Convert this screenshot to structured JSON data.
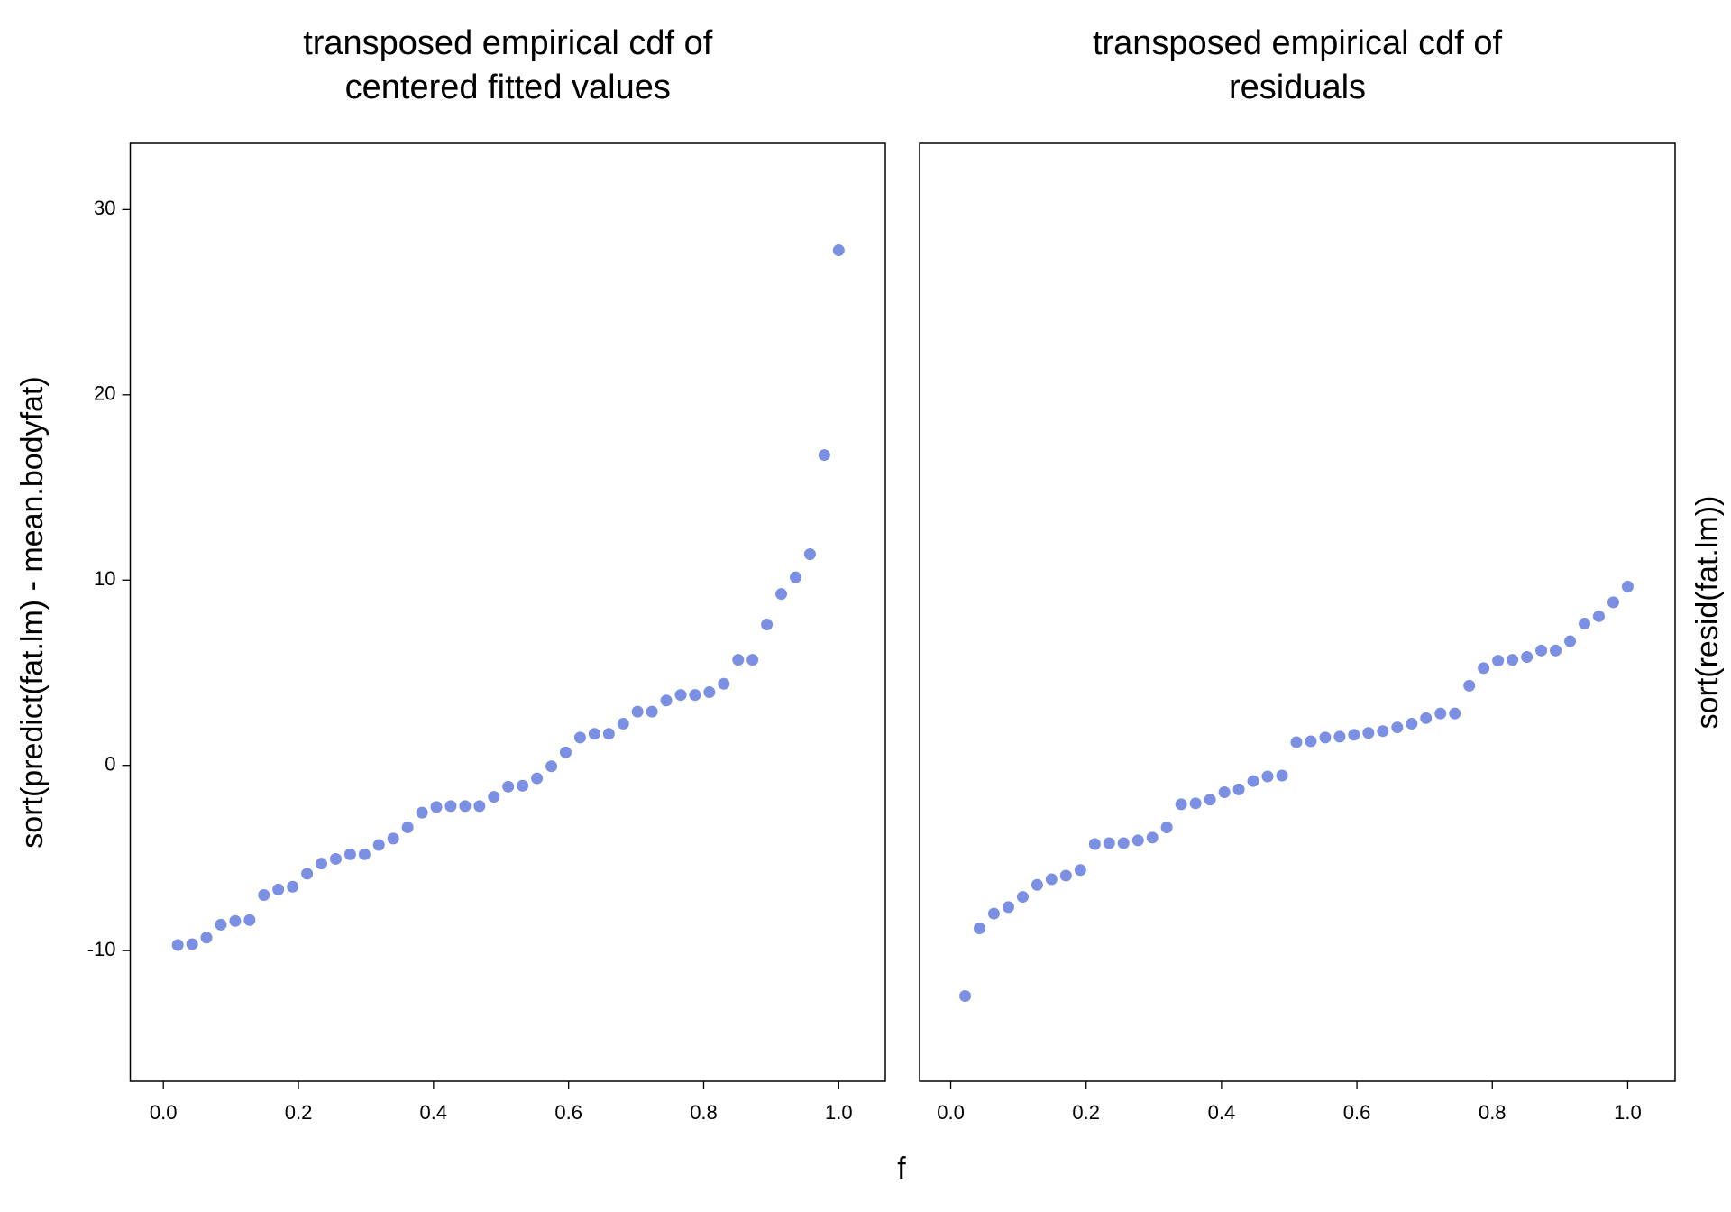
{
  "chart_data": [
    {
      "type": "scatter",
      "title": [
        "transposed empirical cdf of",
        "centered fitted values"
      ],
      "xlabel": "f",
      "ylabel": "sort(predict(fat.lm) - mean.bodyfat)",
      "color": "#7b8fe3",
      "x": [
        0.0213,
        0.0426,
        0.0638,
        0.0851,
        0.1064,
        0.1277,
        0.1489,
        0.1702,
        0.1915,
        0.2128,
        0.234,
        0.2553,
        0.2766,
        0.2979,
        0.3191,
        0.3404,
        0.3617,
        0.383,
        0.4043,
        0.4255,
        0.4468,
        0.4681,
        0.4894,
        0.5106,
        0.5319,
        0.5532,
        0.5745,
        0.5957,
        0.617,
        0.6383,
        0.6596,
        0.6809,
        0.7021,
        0.7234,
        0.7447,
        0.766,
        0.7872,
        0.8085,
        0.8298,
        0.8511,
        0.8723,
        0.8936,
        0.9149,
        0.9362,
        0.9574,
        0.9787,
        1.0
      ],
      "values": [
        -9.7,
        -9.65,
        -9.3,
        -8.6,
        -8.4,
        -8.35,
        -7.0,
        -6.7,
        -6.55,
        -5.85,
        -5.3,
        -5.05,
        -4.8,
        -4.8,
        -4.3,
        -3.95,
        -3.35,
        -2.55,
        -2.25,
        -2.2,
        -2.2,
        -2.2,
        -1.7,
        -1.15,
        -1.1,
        -0.7,
        -0.05,
        0.7,
        1.5,
        1.7,
        1.7,
        2.25,
        2.9,
        2.9,
        3.5,
        3.8,
        3.8,
        3.95,
        4.4,
        5.7,
        5.7,
        7.6,
        9.25,
        10.15,
        11.4,
        16.75,
        27.8
      ],
      "xlim": [
        -0.049,
        1.069
      ],
      "xticks": [
        {
          "value": 0,
          "label": "0.0"
        },
        {
          "value": 0.2,
          "label": "0.2"
        },
        {
          "value": 0.4,
          "label": "0.4"
        },
        {
          "value": 0.6,
          "label": "0.6"
        },
        {
          "value": 0.8,
          "label": "0.8"
        },
        {
          "value": 1,
          "label": "1.0"
        }
      ],
      "ylim": [
        -17.05,
        33.57
      ],
      "yticks": [
        -10,
        0,
        10,
        20,
        30
      ]
    },
    {
      "type": "scatter",
      "title": [
        "transposed empirical cdf of",
        "residuals"
      ],
      "ylabel": "sort(resid(fat.lm))",
      "color": "#7b8fe3",
      "x": [
        0.0213,
        0.0426,
        0.0638,
        0.0851,
        0.1064,
        0.1277,
        0.1489,
        0.1702,
        0.1915,
        0.2128,
        0.234,
        0.2553,
        0.2766,
        0.2979,
        0.3191,
        0.3404,
        0.3617,
        0.383,
        0.4043,
        0.4255,
        0.4468,
        0.4681,
        0.4894,
        0.5106,
        0.5319,
        0.5532,
        0.5745,
        0.5957,
        0.617,
        0.6383,
        0.6596,
        0.6809,
        0.7021,
        0.7234,
        0.7447,
        0.766,
        0.7872,
        0.8085,
        0.8298,
        0.8511,
        0.8723,
        0.8936,
        0.9149,
        0.9362,
        0.9574,
        0.9787,
        1.0
      ],
      "values": [
        -12.45,
        -8.8,
        -8.0,
        -7.65,
        -7.1,
        -6.45,
        -6.15,
        -5.95,
        -5.65,
        -4.25,
        -4.2,
        -4.2,
        -4.05,
        -3.9,
        -3.35,
        -2.1,
        -2.05,
        -1.85,
        -1.45,
        -1.3,
        -0.85,
        -0.6,
        -0.55,
        1.25,
        1.3,
        1.5,
        1.55,
        1.65,
        1.75,
        1.85,
        2.05,
        2.25,
        2.55,
        2.8,
        2.8,
        4.3,
        5.25,
        5.65,
        5.7,
        5.85,
        6.2,
        6.2,
        6.7,
        7.65,
        8.05,
        8.8,
        9.65
      ],
      "xlim": [
        -0.046,
        1.07
      ],
      "xticks": [
        {
          "value": 0,
          "label": "0.0"
        },
        {
          "value": 0.2,
          "label": "0.2"
        },
        {
          "value": 0.4,
          "label": "0.4"
        },
        {
          "value": 0.6,
          "label": "0.6"
        },
        {
          "value": 0.8,
          "label": "0.8"
        },
        {
          "value": 1,
          "label": "1.0"
        }
      ],
      "ylim": [
        -17.05,
        33.57
      ]
    }
  ]
}
